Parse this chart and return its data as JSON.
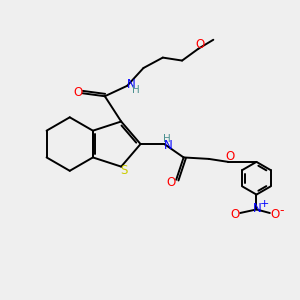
{
  "bg_color": "#efefef",
  "atom_colors": {
    "C": "#000000",
    "N": "#0000ff",
    "O": "#ff0000",
    "S": "#cccc00",
    "H": "#4a9090",
    "plus": "#0000ff",
    "minus": "#ff0000"
  },
  "bond_color": "#000000",
  "bond_lw": 1.4
}
